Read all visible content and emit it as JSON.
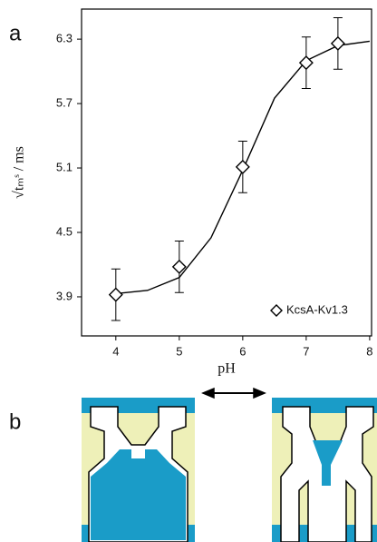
{
  "chart_data": {
    "type": "scatter",
    "panel_labels": [
      "a",
      "b"
    ],
    "xlabel": "pH",
    "ylabel": "√tₘˢ / ms",
    "xlim": [
      3.46,
      8.03
    ],
    "ylim": [
      3.536,
      6.58
    ],
    "xticks": [
      4,
      5,
      6,
      7,
      8
    ],
    "yticks": [
      3.9,
      4.5,
      5.1,
      5.7,
      6.3
    ],
    "series": [
      {
        "name": "KcsA-Kv1.3",
        "color": "#000000",
        "x": [
          4,
          5,
          6,
          7,
          7.5
        ],
        "values": [
          3.92,
          4.18,
          5.11,
          6.08,
          6.26
        ],
        "errors": [
          0.24,
          0.24,
          0.24,
          0.24,
          0.24
        ]
      }
    ],
    "fit": {
      "x": [
        4,
        4.5,
        5,
        5.5,
        6,
        6.5,
        7,
        7.5,
        8
      ],
      "values": [
        3.93,
        3.96,
        4.08,
        4.45,
        5.08,
        5.75,
        6.1,
        6.24,
        6.28
      ]
    },
    "legend": "lower right"
  }
}
